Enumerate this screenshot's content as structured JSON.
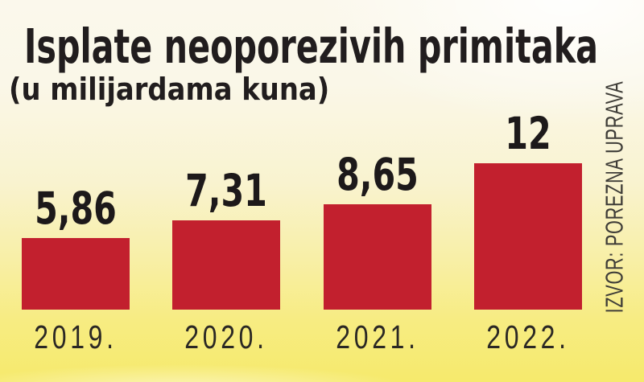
{
  "chart_data": {
    "type": "bar",
    "title": "Isplate neoporezivih primitaka",
    "subtitle": "(u milijardama kuna)",
    "source": "IZVOR: POREZNA UPRAVA",
    "categories": [
      "2019.",
      "2020.",
      "2021.",
      "2022."
    ],
    "values": [
      5.86,
      7.31,
      8.65,
      12
    ],
    "value_labels": [
      "5,86",
      "7,31",
      "8,65",
      "12"
    ],
    "ylim": [
      0,
      12.5
    ],
    "bar_color": "#c2202e",
    "text_color": "#211d1e",
    "background_top_color": "#fbf8ec",
    "background_bottom_color": "#f6ea6c",
    "grid": "off",
    "legend": "none",
    "value_labels_position": "above bars",
    "category_labels_position": "below bars"
  }
}
